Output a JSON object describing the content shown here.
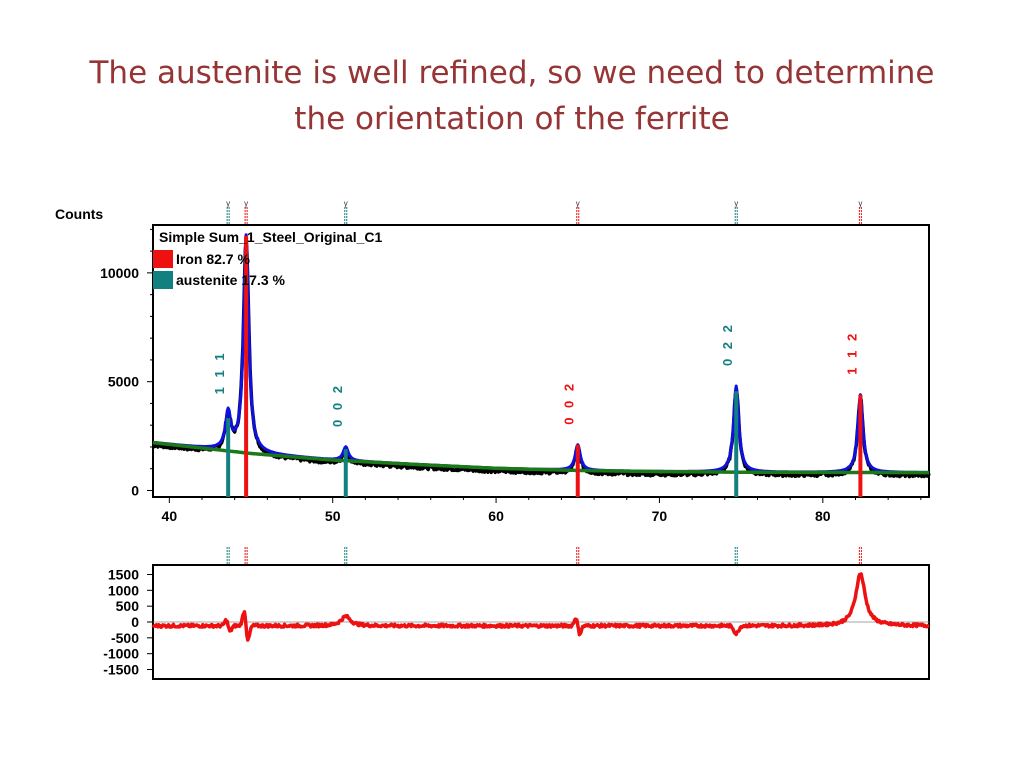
{
  "slide": {
    "title_line1": "The austenite is well refined, so we need to determine",
    "title_line2": "the orientation of the ferrite"
  },
  "colors": {
    "title": "#963535",
    "observed": "#000000",
    "calculated": "#1010e0",
    "background": "#1a7a1a",
    "iron": "#ee1111",
    "austenite": "#138080",
    "difference": "#ee1111"
  },
  "chart_data": [
    {
      "type": "line",
      "ylabel": "Counts",
      "xlim": [
        39,
        86.5
      ],
      "ylim": [
        -300,
        12200
      ],
      "x_ticks": [
        "40",
        "50",
        "60",
        "70",
        "80"
      ],
      "y_ticks": [
        "0",
        "5000",
        "10000"
      ],
      "legend": {
        "title": "Simple Sum_1_Steel_Original_C1",
        "placement": "top-left",
        "items": [
          {
            "label": "Iron 82.7 %",
            "color": "#ee1111"
          },
          {
            "label": "austenite 17.3 %",
            "color": "#138080"
          }
        ]
      },
      "phase_markers_symbol": "γ",
      "peaks": [
        {
          "phase": "austenite",
          "x": 43.6,
          "height": 3500,
          "hkl": "1 1 1"
        },
        {
          "phase": "iron",
          "x": 44.7,
          "height": 11700,
          "hkl": ""
        },
        {
          "phase": "austenite",
          "x": 50.8,
          "height": 2000,
          "hkl": "0 0 2"
        },
        {
          "phase": "iron",
          "x": 65.0,
          "height": 2100,
          "hkl": "0 0 2"
        },
        {
          "phase": "austenite",
          "x": 74.7,
          "height": 4800,
          "hkl": "0 2 2"
        },
        {
          "phase": "iron",
          "x": 82.3,
          "height": 4400,
          "hkl": "1 1 2"
        }
      ],
      "background_curve": {
        "x": [
          39,
          45,
          50,
          55,
          60,
          65,
          70,
          75,
          80,
          86.5
        ],
        "y": [
          2200,
          1700,
          1400,
          1200,
          1020,
          920,
          870,
          840,
          830,
          820
        ]
      }
    },
    {
      "type": "line",
      "series_name": "difference",
      "xlim": [
        39,
        86.5
      ],
      "ylim": [
        -1800,
        1800
      ],
      "y_ticks": [
        "1500",
        "1000",
        "500",
        "0",
        "-500",
        "-1000",
        "-1500"
      ],
      "features": [
        {
          "x": 43.6,
          "amp": 350,
          "kind": "wiggle"
        },
        {
          "x": 44.7,
          "amp": 900,
          "kind": "wiggle"
        },
        {
          "x": 50.8,
          "amp": 300,
          "kind": "bump"
        },
        {
          "x": 65.0,
          "amp": 500,
          "kind": "wiggle"
        },
        {
          "x": 74.7,
          "amp": -250,
          "kind": "dip"
        },
        {
          "x": 82.3,
          "amp": 1650,
          "kind": "bump"
        }
      ]
    }
  ]
}
